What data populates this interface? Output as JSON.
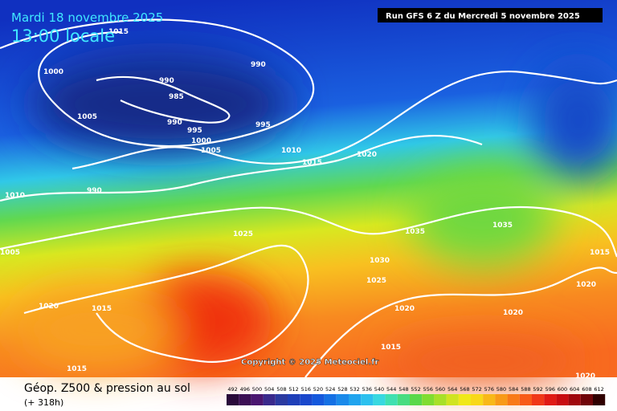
{
  "header": {
    "date": "Mardi 18 novembre 2025",
    "time": "13:00 locale",
    "run": "Run GFS 6 Z du Mercredi 5 novembre 2025"
  },
  "isobar_labels": [
    "1015",
    "1000",
    "1005",
    "990",
    "990",
    "985",
    "990",
    "995",
    "995",
    "1000",
    "1005",
    "1010",
    "1015",
    "1020",
    "990",
    "1010",
    "1005",
    "1025",
    "1035",
    "1035",
    "1030",
    "1025",
    "1020",
    "1020",
    "1015",
    "1020",
    "1015",
    "1020",
    "1015",
    "1015",
    "1020"
  ],
  "copyright": "Copyright © 2025 Meteociel.fr",
  "footer": {
    "title": "Géop. Z500 & pression au sol",
    "subtitle": "(+ 318h)"
  },
  "legend": {
    "values": [
      492,
      496,
      500,
      504,
      508,
      512,
      516,
      520,
      524,
      528,
      532,
      536,
      540,
      544,
      548,
      552,
      556,
      560,
      564,
      568,
      572,
      576,
      580,
      584,
      588,
      592,
      596,
      600,
      604,
      608,
      612
    ],
    "colors": [
      "#2a0a3a",
      "#3c0f55",
      "#4b1670",
      "#3a2a8c",
      "#2b3aa0",
      "#1f3fb8",
      "#1a48cc",
      "#1458dc",
      "#1470e4",
      "#1a8aea",
      "#20a4ee",
      "#2cc0ee",
      "#38d8e0",
      "#40e0b0",
      "#48dc80",
      "#5ad84a",
      "#80dc30",
      "#a8e028",
      "#d0e420",
      "#f0e818",
      "#f8d818",
      "#f8b818",
      "#f89a18",
      "#f87a18",
      "#f85a18",
      "#f03818",
      "#e01a14",
      "#c80c10",
      "#a0080c",
      "#700408",
      "#300000"
    ]
  }
}
